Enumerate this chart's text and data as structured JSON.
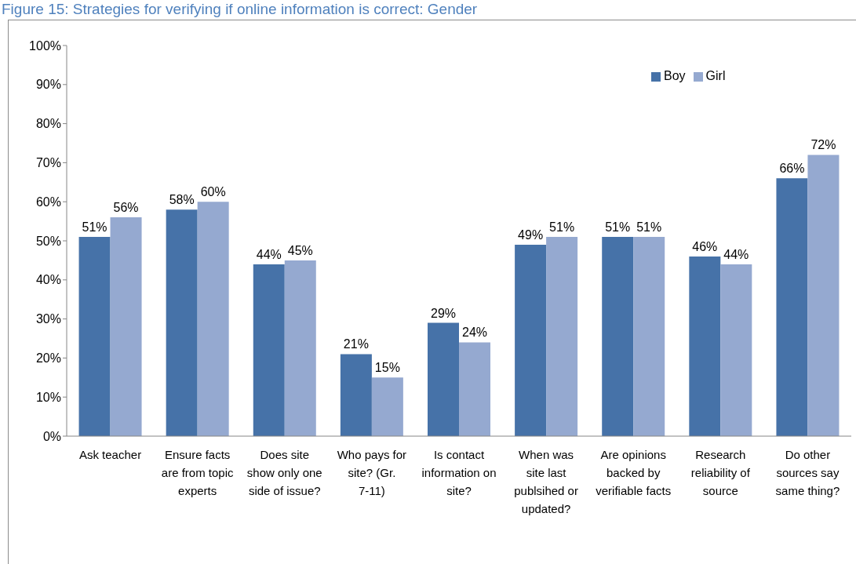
{
  "chart_data": {
    "type": "bar",
    "title": "Figure 15: Strategies for verifying if online information is correct: Gender",
    "categories": [
      "Ask teacher",
      "Ensure facts are from topic experts",
      "Does site show only one side of issue?",
      "Who pays for site? (Gr. 7-11)",
      "Is contact information on site?",
      "When was site last publsihed or updated?",
      "Are opinions backed by verifiable facts",
      "Research reliability of source",
      "Do other sources say same thing?"
    ],
    "series": [
      {
        "name": "Boy",
        "color": "#4672a8",
        "values": [
          51,
          58,
          44,
          21,
          29,
          49,
          51,
          46,
          66
        ],
        "value_labels": [
          "51%",
          "58%",
          "44%",
          "21%",
          "29%",
          "49%",
          "51%",
          "46%",
          "66%"
        ]
      },
      {
        "name": "Girl",
        "color": "#95a9d0",
        "values": [
          56,
          60,
          45,
          15,
          24,
          51,
          51,
          44,
          72
        ],
        "value_labels": [
          "56%",
          "60%",
          "45%",
          "15%",
          "24%",
          "51%",
          "51%",
          "44%",
          "72%"
        ]
      }
    ],
    "ylim": [
      0,
      100
    ],
    "yticks": [
      {
        "value": 0,
        "label": "0%"
      },
      {
        "value": 10,
        "label": "10%"
      },
      {
        "value": 20,
        "label": "20%"
      },
      {
        "value": 30,
        "label": "30%"
      },
      {
        "value": 40,
        "label": "40%"
      },
      {
        "value": 50,
        "label": "50%"
      },
      {
        "value": 60,
        "label": "60%"
      },
      {
        "value": 70,
        "label": "70%"
      },
      {
        "value": 80,
        "label": "80%"
      },
      {
        "value": 90,
        "label": "90%"
      },
      {
        "value": 100,
        "label": "100%"
      }
    ],
    "grid": false,
    "legend": "top right"
  }
}
